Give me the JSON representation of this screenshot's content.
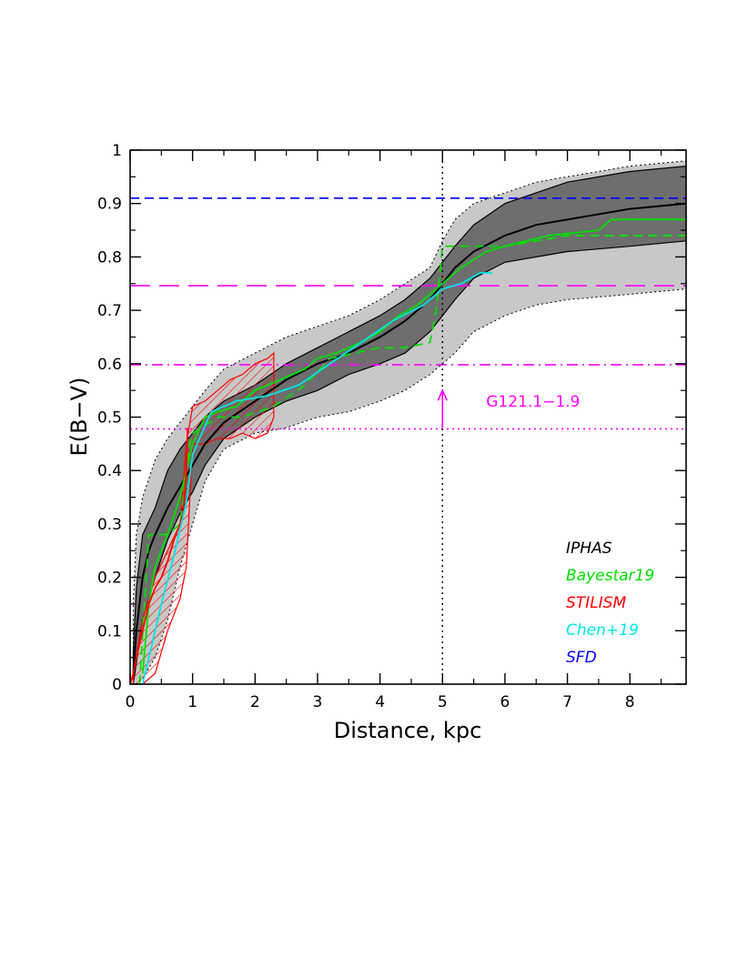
{
  "chart_data": {
    "type": "line",
    "xlabel": "Distance, kpc",
    "ylabel": "E(B−V)",
    "xlim": [
      0,
      8.9
    ],
    "ylim": [
      0,
      1
    ],
    "x_ticks": [
      0,
      1,
      2,
      3,
      4,
      5,
      6,
      7,
      8
    ],
    "y_ticks": [
      0,
      0.1,
      0.2,
      0.3,
      0.4,
      0.5,
      0.6,
      0.7,
      0.8,
      0.9,
      1
    ],
    "x_tick_labels": [
      "0",
      "1",
      "2",
      "3",
      "4",
      "5",
      "6",
      "7",
      "8"
    ],
    "y_tick_labels": [
      "0",
      "0.1",
      "0.2",
      "0.3",
      "0.4",
      "0.5",
      "0.6",
      "0.7",
      "0.8",
      "0.9",
      "1"
    ],
    "grid": false,
    "legend_position": "bottom-right",
    "legend": [
      {
        "label": "IPHAS",
        "color": "#000000"
      },
      {
        "label": "Bayestar19",
        "color": "#00e000"
      },
      {
        "label": "STILISM",
        "color": "#ff0000"
      },
      {
        "label": "Chen+19",
        "color": "#00e5e5"
      },
      {
        "label": "SFD",
        "color": "#0000ff"
      }
    ],
    "bands": [
      {
        "name": "IPHAS outer range",
        "color": "#c8c8c8",
        "x": [
          0.05,
          0.1,
          0.2,
          0.4,
          0.6,
          0.8,
          1.0,
          1.2,
          1.5,
          2.0,
          2.5,
          3.0,
          3.5,
          4.0,
          4.4,
          4.8,
          5.0,
          5.2,
          5.5,
          6.0,
          6.5,
          7.0,
          8.0,
          8.9
        ],
        "upper": [
          0.15,
          0.28,
          0.35,
          0.42,
          0.46,
          0.49,
          0.52,
          0.55,
          0.59,
          0.62,
          0.65,
          0.67,
          0.69,
          0.72,
          0.75,
          0.78,
          0.83,
          0.87,
          0.9,
          0.92,
          0.94,
          0.95,
          0.97,
          0.98
        ],
        "lower": [
          0.0,
          0.0,
          0.01,
          0.05,
          0.12,
          0.22,
          0.3,
          0.38,
          0.44,
          0.47,
          0.48,
          0.5,
          0.51,
          0.53,
          0.55,
          0.58,
          0.6,
          0.62,
          0.66,
          0.69,
          0.71,
          0.72,
          0.73,
          0.74
        ]
      },
      {
        "name": "IPHAS inner range",
        "color": "#6e6e6e",
        "x": [
          0.05,
          0.1,
          0.2,
          0.4,
          0.6,
          0.8,
          1.0,
          1.2,
          1.5,
          2.0,
          2.5,
          3.0,
          3.5,
          4.0,
          4.4,
          4.8,
          5.0,
          5.2,
          5.5,
          6.0,
          6.5,
          7.0,
          8.0,
          8.9
        ],
        "upper": [
          0.06,
          0.18,
          0.28,
          0.33,
          0.4,
          0.44,
          0.47,
          0.5,
          0.53,
          0.56,
          0.6,
          0.63,
          0.66,
          0.69,
          0.72,
          0.76,
          0.79,
          0.82,
          0.86,
          0.9,
          0.92,
          0.94,
          0.96,
          0.97
        ],
        "lower": [
          0.0,
          0.04,
          0.12,
          0.2,
          0.27,
          0.32,
          0.36,
          0.41,
          0.46,
          0.5,
          0.53,
          0.55,
          0.58,
          0.6,
          0.62,
          0.66,
          0.69,
          0.72,
          0.76,
          0.79,
          0.8,
          0.81,
          0.82,
          0.83
        ]
      }
    ],
    "hatched_region": {
      "name": "STILISM",
      "color": "#ff0000",
      "x": [
        0.05,
        0.2,
        0.4,
        0.6,
        0.8,
        0.9,
        1.0,
        1.2,
        1.4,
        1.6,
        1.8,
        2.0,
        2.2,
        2.3
      ],
      "upper": [
        0.02,
        0.12,
        0.2,
        0.25,
        0.3,
        0.45,
        0.52,
        0.53,
        0.55,
        0.57,
        0.58,
        0.6,
        0.61,
        0.62
      ],
      "lower": [
        0.0,
        0.0,
        0.02,
        0.1,
        0.16,
        0.22,
        0.45,
        0.45,
        0.46,
        0.46,
        0.47,
        0.46,
        0.47,
        0.5
      ]
    },
    "series": [
      {
        "name": "IPHAS",
        "color": "#000000",
        "dash": "solid",
        "x": [
          0.05,
          0.1,
          0.2,
          0.3,
          0.4,
          0.6,
          0.8,
          1.0,
          1.2,
          1.5,
          2.0,
          2.5,
          3.0,
          3.5,
          4.0,
          4.4,
          4.8,
          5.0,
          5.2,
          5.5,
          6.0,
          6.5,
          7.0,
          7.5,
          8.0,
          8.9
        ],
        "y": [
          0.02,
          0.1,
          0.2,
          0.25,
          0.28,
          0.33,
          0.37,
          0.41,
          0.45,
          0.49,
          0.53,
          0.57,
          0.6,
          0.62,
          0.65,
          0.68,
          0.72,
          0.75,
          0.78,
          0.81,
          0.84,
          0.86,
          0.87,
          0.88,
          0.89,
          0.9
        ]
      },
      {
        "name": "Bayestar19",
        "color": "#00e000",
        "dash": "solid",
        "x": [
          0.2,
          0.3,
          0.4,
          0.6,
          0.8,
          0.9,
          1.0,
          1.2,
          1.4,
          1.7,
          2.0,
          2.4,
          2.8,
          3.0,
          3.3,
          3.7,
          4.0,
          4.3,
          4.6,
          4.8,
          5.0,
          5.3,
          5.7,
          6.0,
          6.7,
          7.5,
          7.7,
          8.9
        ],
        "y": [
          0.02,
          0.15,
          0.22,
          0.28,
          0.35,
          0.4,
          0.45,
          0.5,
          0.51,
          0.52,
          0.55,
          0.57,
          0.59,
          0.61,
          0.62,
          0.64,
          0.66,
          0.69,
          0.71,
          0.73,
          0.75,
          0.78,
          0.81,
          0.82,
          0.84,
          0.85,
          0.87,
          0.87
        ]
      },
      {
        "name": "Bayestar19 (dashed)",
        "color": "#00e000",
        "dash": "dashed",
        "x": [
          0.15,
          0.3,
          0.6,
          0.8,
          0.95,
          1.0,
          1.4,
          1.8,
          2.3,
          2.8,
          3.2,
          3.6,
          4.0,
          4.4,
          4.8,
          4.9,
          5.0,
          6.0,
          7.0,
          8.9
        ],
        "y": [
          0.0,
          0.28,
          0.28,
          0.3,
          0.45,
          0.47,
          0.5,
          0.5,
          0.52,
          0.56,
          0.61,
          0.62,
          0.63,
          0.63,
          0.64,
          0.7,
          0.82,
          0.82,
          0.84,
          0.84
        ]
      },
      {
        "name": "STILISM",
        "color": "#ff0000",
        "dash": "solid",
        "x": [
          0.0,
          0.05,
          0.1,
          0.2,
          0.3,
          0.4,
          0.5,
          0.6,
          0.7,
          0.8,
          0.85,
          0.9,
          0.92
        ],
        "y": [
          0.0,
          0.02,
          0.05,
          0.1,
          0.15,
          0.18,
          0.2,
          0.23,
          0.27,
          0.3,
          0.32,
          0.4,
          0.48
        ]
      },
      {
        "name": "Chen+19",
        "color": "#00e5e5",
        "dash": "solid",
        "x": [
          0.2,
          0.3,
          0.5,
          0.7,
          0.9,
          1.0,
          1.3,
          1.7,
          2.2,
          2.7,
          3.2,
          3.7,
          4.2,
          4.7,
          5.0,
          5.3,
          5.6,
          5.8
        ],
        "y": [
          0.0,
          0.05,
          0.15,
          0.24,
          0.34,
          0.43,
          0.51,
          0.53,
          0.54,
          0.56,
          0.6,
          0.64,
          0.68,
          0.71,
          0.74,
          0.75,
          0.77,
          0.77
        ]
      }
    ],
    "hlines": [
      {
        "name": "SFD",
        "y": 0.91,
        "color": "#0000ff",
        "dash": "dashed"
      },
      {
        "name": "long-dash",
        "y": 0.746,
        "color": "#ff00ff",
        "dash": "longdash"
      },
      {
        "name": "dash-dot",
        "y": 0.598,
        "color": "#ff00ff",
        "dash": "dashdot"
      },
      {
        "name": "dotted",
        "y": 0.478,
        "color": "#ff00ff",
        "dash": "dotted"
      }
    ],
    "vline": {
      "x": 5.0,
      "color": "#000000",
      "dash": "dotted"
    },
    "annotation": {
      "text": "G121.1−1.9",
      "color": "#ff00ff",
      "arrow_x": 5.0,
      "arrow_from_y": 0.48,
      "arrow_to_y": 0.55
    }
  }
}
